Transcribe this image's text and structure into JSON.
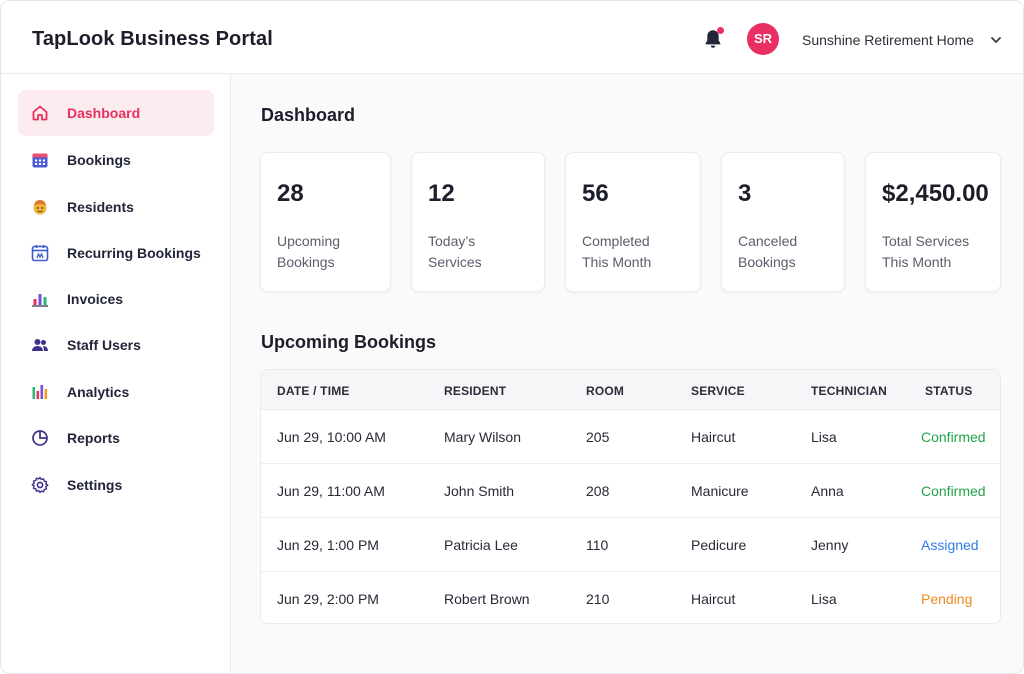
{
  "header": {
    "app_title": "TapLook Business Portal",
    "avatar_initials": "SR",
    "org_name": "Sunshine Retirement Home",
    "avatar_color": "#ea2d63",
    "notification_dot_color": "#ef2d5e"
  },
  "sidebar": {
    "active_color": "#e8305f",
    "items": [
      {
        "label": "Dashboard",
        "icon": "home-icon",
        "active": true
      },
      {
        "label": "Bookings",
        "icon": "calendar-icon"
      },
      {
        "label": "Residents",
        "icon": "resident-face-icon"
      },
      {
        "label": "Recurring Bookings",
        "icon": "recurring-calendar-icon"
      },
      {
        "label": "Invoices",
        "icon": "invoice-chart-icon"
      },
      {
        "label": "Staff Users",
        "icon": "users-icon"
      },
      {
        "label": "Analytics",
        "icon": "bar-chart-icon"
      },
      {
        "label": "Reports",
        "icon": "pie-chart-icon"
      },
      {
        "label": "Settings",
        "icon": "gear-icon"
      }
    ]
  },
  "main": {
    "title": "Dashboard",
    "stats": [
      {
        "value": "28",
        "label_line1": "Upcoming",
        "label_line2": "Bookings"
      },
      {
        "value": "12",
        "label_line1": "Today’s",
        "label_line2": "Services"
      },
      {
        "value": "56",
        "label_line1": "Completed",
        "label_line2": "This Month"
      },
      {
        "value": "3",
        "label_line1": "Canceled",
        "label_line2": "Bookings"
      },
      {
        "value": "$2,450.00",
        "label_line1": "Total Services",
        "label_line2": "This Month"
      }
    ],
    "bookings_title": "Upcoming Bookings",
    "columns": [
      "DATE / TIME",
      "RESIDENT",
      "ROOM",
      "SERVICE",
      "TECHNICIAN",
      "STATUS"
    ],
    "rows": [
      {
        "datetime": "Jun 29, 10:00 AM",
        "resident": "Mary Wilson",
        "room": "205",
        "service": "Haircut",
        "technician": "Lisa",
        "status": "Confirmed",
        "status_color": "#22a34a"
      },
      {
        "datetime": "Jun 29, 11:00 AM",
        "resident": "John Smith",
        "room": "208",
        "service": "Manicure",
        "technician": "Anna",
        "status": "Confirmed",
        "status_color": "#22a34a"
      },
      {
        "datetime": "Jun 29, 1:00 PM",
        "resident": "Patricia Lee",
        "room": "110",
        "service": "Pedicure",
        "technician": "Jenny",
        "status": "Assigned",
        "status_color": "#2f7be6"
      },
      {
        "datetime": "Jun 29, 2:00 PM",
        "resident": "Robert Brown",
        "room": "210",
        "service": "Haircut",
        "technician": "Lisa",
        "status": "Pending",
        "status_color": "#f08a24"
      }
    ]
  }
}
